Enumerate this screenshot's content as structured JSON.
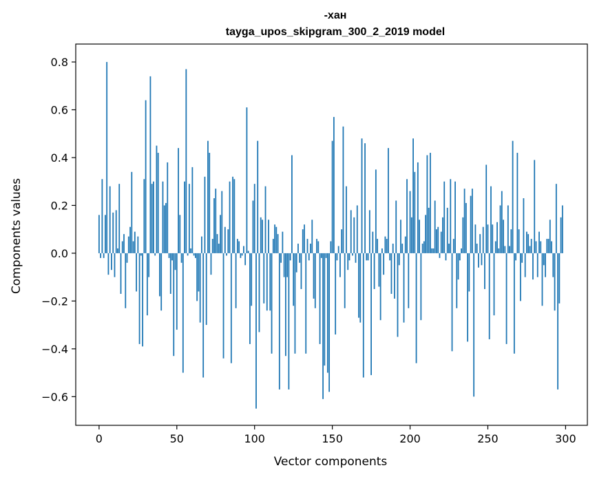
{
  "chart_data": {
    "type": "bar",
    "title": "-хан",
    "subtitle": "tayga_upos_skipgram_300_2_2019 model",
    "xlabel": "Vector components",
    "ylabel": "Components values",
    "xlim": [
      -15,
      314
    ],
    "ylim": [
      -0.72,
      0.875
    ],
    "xticks": [
      0,
      50,
      100,
      150,
      200,
      250,
      300
    ],
    "yticks": [
      -0.6,
      -0.4,
      -0.2,
      0.0,
      0.2,
      0.4,
      0.6,
      0.8
    ],
    "ytick_labels": [
      "−0.6",
      "−0.4",
      "−0.2",
      "0.0",
      "0.2",
      "0.4",
      "0.6",
      "0.8"
    ],
    "bar_color": "#1f77b4",
    "values": [
      0.16,
      -0.02,
      0.31,
      -0.02,
      0.16,
      0.8,
      -0.09,
      0.28,
      -0.07,
      0.17,
      -0.1,
      0.18,
      0.02,
      0.29,
      -0.17,
      0.05,
      0.08,
      -0.23,
      -0.04,
      0.07,
      0.11,
      0.34,
      0.05,
      0.09,
      -0.16,
      0.07,
      -0.38,
      -0.01,
      -0.39,
      0.31,
      0.64,
      -0.26,
      -0.1,
      0.74,
      0.29,
      0.3,
      -0.01,
      0.45,
      0.42,
      -0.18,
      -0.24,
      0.3,
      0.2,
      0.21,
      0.38,
      -0.02,
      -0.17,
      -0.03,
      -0.43,
      -0.07,
      -0.32,
      0.44,
      0.16,
      -0.04,
      -0.5,
      0.3,
      0.77,
      -0.01,
      0.29,
      0.02,
      0.36,
      -0.01,
      -0.02,
      -0.2,
      -0.16,
      -0.29,
      0.07,
      -0.52,
      0.32,
      -0.3,
      0.47,
      0.42,
      -0.09,
      0.06,
      0.23,
      0.27,
      0.08,
      0.04,
      0.16,
      0.26,
      -0.44,
      0.11,
      -0.01,
      0.1,
      0.3,
      -0.46,
      0.32,
      0.31,
      -0.23,
      0.06,
      0.05,
      -0.02,
      -0.01,
      0.03,
      -0.05,
      0.61,
      0.01,
      -0.38,
      -0.22,
      0.22,
      0.29,
      -0.65,
      0.47,
      -0.33,
      0.15,
      0.14,
      -0.21,
      0.28,
      -0.24,
      0.14,
      -0.24,
      -0.42,
      0.06,
      0.12,
      0.11,
      0.08,
      -0.57,
      -0.04,
      0.09,
      -0.1,
      -0.43,
      -0.1,
      -0.57,
      -0.03,
      0.41,
      -0.22,
      -0.42,
      -0.08,
      0.04,
      -0.04,
      -0.15,
      0.1,
      0.12,
      -0.42,
      0.06,
      -0.03,
      0.04,
      0.14,
      -0.19,
      -0.23,
      0.06,
      0.05,
      -0.38,
      -0.02,
      -0.61,
      -0.47,
      -0.02,
      -0.5,
      -0.58,
      0.05,
      0.47,
      0.57,
      -0.34,
      -0.03,
      0.03,
      -0.1,
      0.1,
      0.53,
      -0.23,
      0.28,
      -0.07,
      -0.03,
      0.18,
      -0.01,
      0.15,
      -0.04,
      0.2,
      -0.27,
      -0.29,
      0.48,
      -0.52,
      0.46,
      -0.03,
      -0.03,
      0.18,
      -0.51,
      0.09,
      -0.15,
      0.35,
      0.06,
      -0.14,
      -0.28,
      0.02,
      -0.09,
      0.07,
      0.06,
      0.44,
      -0.03,
      -0.17,
      0.04,
      -0.19,
      0.22,
      -0.35,
      -0.05,
      0.14,
      0.04,
      -0.29,
      0.07,
      0.31,
      -0.23,
      0.26,
      0.15,
      0.48,
      0.34,
      -0.46,
      0.38,
      0.14,
      -0.28,
      0.04,
      0.05,
      0.16,
      0.41,
      0.19,
      0.42,
      0.02,
      0.02,
      0.22,
      0.1,
      0.11,
      -0.02,
      0.09,
      0.15,
      0.3,
      -0.03,
      0.19,
      0.04,
      0.31,
      -0.41,
      0.06,
      0.3,
      -0.23,
      -0.11,
      -0.03,
      0.02,
      0.15,
      0.27,
      0.21,
      -0.37,
      -0.16,
      0.24,
      0.27,
      -0.6,
      0.12,
      0.04,
      -0.06,
      0.08,
      -0.05,
      0.11,
      -0.15,
      0.37,
      0.12,
      -0.36,
      0.28,
      0.12,
      -0.26,
      0.05,
      0.13,
      0.02,
      0.2,
      0.26,
      0.14,
      0.03,
      -0.38,
      0.2,
      0.03,
      0.1,
      0.47,
      -0.42,
      -0.03,
      0.42,
      0.1,
      -0.2,
      -0.04,
      0.23,
      -0.1,
      0.09,
      0.08,
      0.03,
      0.06,
      -0.11,
      0.39,
      0.05,
      -0.1,
      0.09,
      0.05,
      -0.22,
      -0.05,
      -0.1,
      0.06,
      0.06,
      0.14,
      0.05,
      -0.1,
      -0.24,
      0.29,
      -0.57,
      -0.21,
      0.15,
      0.2
    ]
  }
}
